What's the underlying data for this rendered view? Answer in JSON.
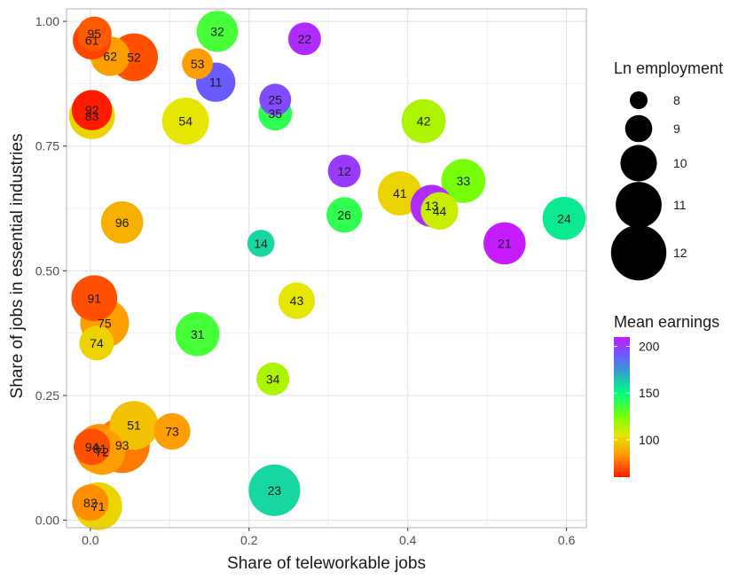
{
  "chart_data": {
    "type": "scatter",
    "xlabel": "Share of teleworkable jobs",
    "ylabel": "Share of jobs in essential industries",
    "xlim": [
      -0.03,
      0.625
    ],
    "ylim": [
      -0.015,
      1.025
    ],
    "x_ticks": [
      0.0,
      0.2,
      0.4,
      0.6
    ],
    "x_tick_labels": [
      "0.0",
      "0.2",
      "0.4",
      "0.6"
    ],
    "y_ticks": [
      0.0,
      0.25,
      0.5,
      0.75,
      1.0
    ],
    "y_tick_labels": [
      "0.00",
      "0.25",
      "0.50",
      "0.75",
      "1.00"
    ],
    "grid": true,
    "size_legend": {
      "title": "Ln employment",
      "entries": [
        {
          "label": "8",
          "value": 8
        },
        {
          "label": "9",
          "value": 9
        },
        {
          "label": "10",
          "value": 10
        },
        {
          "label": "11",
          "value": 11
        },
        {
          "label": "12",
          "value": 12
        }
      ]
    },
    "color_legend": {
      "title": "Mean earnings",
      "min": 60,
      "max": 210,
      "tick_values": [
        100,
        150,
        200
      ],
      "tick_labels": [
        "100",
        "150",
        "200"
      ]
    },
    "legend_position": "right",
    "points": [
      {
        "label": "95",
        "x": 0.005,
        "y": 0.975,
        "ln_emp": 9.8,
        "earnings": 72
      },
      {
        "label": "61",
        "x": 0.002,
        "y": 0.962,
        "ln_emp": 10.2,
        "earnings": 68
      },
      {
        "label": "62",
        "x": 0.025,
        "y": 0.93,
        "ln_emp": 10.3,
        "earnings": 85
      },
      {
        "label": "52",
        "x": 0.055,
        "y": 0.928,
        "ln_emp": 11.2,
        "earnings": 70
      },
      {
        "label": "32",
        "x": 0.16,
        "y": 0.98,
        "ln_emp": 10.5,
        "earnings": 135
      },
      {
        "label": "22",
        "x": 0.27,
        "y": 0.965,
        "ln_emp": 9.6,
        "earnings": 205
      },
      {
        "label": "53",
        "x": 0.135,
        "y": 0.915,
        "ln_emp": 9.4,
        "earnings": 85
      },
      {
        "label": "11",
        "x": 0.158,
        "y": 0.878,
        "ln_emp": 10.3,
        "earnings": 190
      },
      {
        "label": "25",
        "x": 0.233,
        "y": 0.843,
        "ln_emp": 9.5,
        "earnings": 195
      },
      {
        "label": "35",
        "x": 0.233,
        "y": 0.815,
        "ln_emp": 9.7,
        "earnings": 140
      },
      {
        "label": "83",
        "x": 0.002,
        "y": 0.81,
        "ln_emp": 11.0,
        "earnings": 100
      },
      {
        "label": "92",
        "x": 0.002,
        "y": 0.822,
        "ln_emp": 10.4,
        "earnings": 60
      },
      {
        "label": "54",
        "x": 0.12,
        "y": 0.8,
        "ln_emp": 11.1,
        "earnings": 105
      },
      {
        "label": "42",
        "x": 0.42,
        "y": 0.8,
        "ln_emp": 10.8,
        "earnings": 115
      },
      {
        "label": "12",
        "x": 0.32,
        "y": 0.7,
        "ln_emp": 9.6,
        "earnings": 200
      },
      {
        "label": "33",
        "x": 0.47,
        "y": 0.68,
        "ln_emp": 10.8,
        "earnings": 125
      },
      {
        "label": "41",
        "x": 0.39,
        "y": 0.655,
        "ln_emp": 10.8,
        "earnings": 100
      },
      {
        "label": "13",
        "x": 0.43,
        "y": 0.63,
        "ln_emp": 10.6,
        "earnings": 205
      },
      {
        "label": "44",
        "x": 0.44,
        "y": 0.62,
        "ln_emp": 10.1,
        "earnings": 110
      },
      {
        "label": "26",
        "x": 0.32,
        "y": 0.612,
        "ln_emp": 9.9,
        "earnings": 140
      },
      {
        "label": "24",
        "x": 0.597,
        "y": 0.605,
        "ln_emp": 10.7,
        "earnings": 155
      },
      {
        "label": "96",
        "x": 0.04,
        "y": 0.597,
        "ln_emp": 10.6,
        "earnings": 90
      },
      {
        "label": "14",
        "x": 0.215,
        "y": 0.555,
        "ln_emp": 9.0,
        "earnings": 160
      },
      {
        "label": "21",
        "x": 0.522,
        "y": 0.555,
        "ln_emp": 10.6,
        "earnings": 210
      },
      {
        "label": "91",
        "x": 0.005,
        "y": 0.445,
        "ln_emp": 11.0,
        "earnings": 70
      },
      {
        "label": "43",
        "x": 0.26,
        "y": 0.44,
        "ln_emp": 10.0,
        "earnings": 105
      },
      {
        "label": "75",
        "x": 0.018,
        "y": 0.395,
        "ln_emp": 11.3,
        "earnings": 85
      },
      {
        "label": "31",
        "x": 0.135,
        "y": 0.373,
        "ln_emp": 10.8,
        "earnings": 135
      },
      {
        "label": "74",
        "x": 0.008,
        "y": 0.355,
        "ln_emp": 9.8,
        "earnings": 100
      },
      {
        "label": "34",
        "x": 0.23,
        "y": 0.283,
        "ln_emp": 9.6,
        "earnings": 115
      },
      {
        "label": "51",
        "x": 0.055,
        "y": 0.19,
        "ln_emp": 11.3,
        "earnings": 95
      },
      {
        "label": "73",
        "x": 0.103,
        "y": 0.178,
        "ln_emp": 10.0,
        "earnings": 85
      },
      {
        "label": "93",
        "x": 0.04,
        "y": 0.15,
        "ln_emp": 12.0,
        "earnings": 78
      },
      {
        "label": "94",
        "x": 0.002,
        "y": 0.147,
        "ln_emp": 10.0,
        "earnings": 70
      },
      {
        "label": "81",
        "x": 0.012,
        "y": 0.143,
        "ln_emp": 11.4,
        "earnings": 82
      },
      {
        "label": "72",
        "x": 0.015,
        "y": 0.137,
        "ln_emp": 11.0,
        "earnings": 85
      },
      {
        "label": "23",
        "x": 0.232,
        "y": 0.06,
        "ln_emp": 11.6,
        "earnings": 160
      },
      {
        "label": "71",
        "x": 0.01,
        "y": 0.028,
        "ln_emp": 11.2,
        "earnings": 100
      },
      {
        "label": "82",
        "x": 0.0,
        "y": 0.035,
        "ln_emp": 10.0,
        "earnings": 82
      }
    ]
  }
}
